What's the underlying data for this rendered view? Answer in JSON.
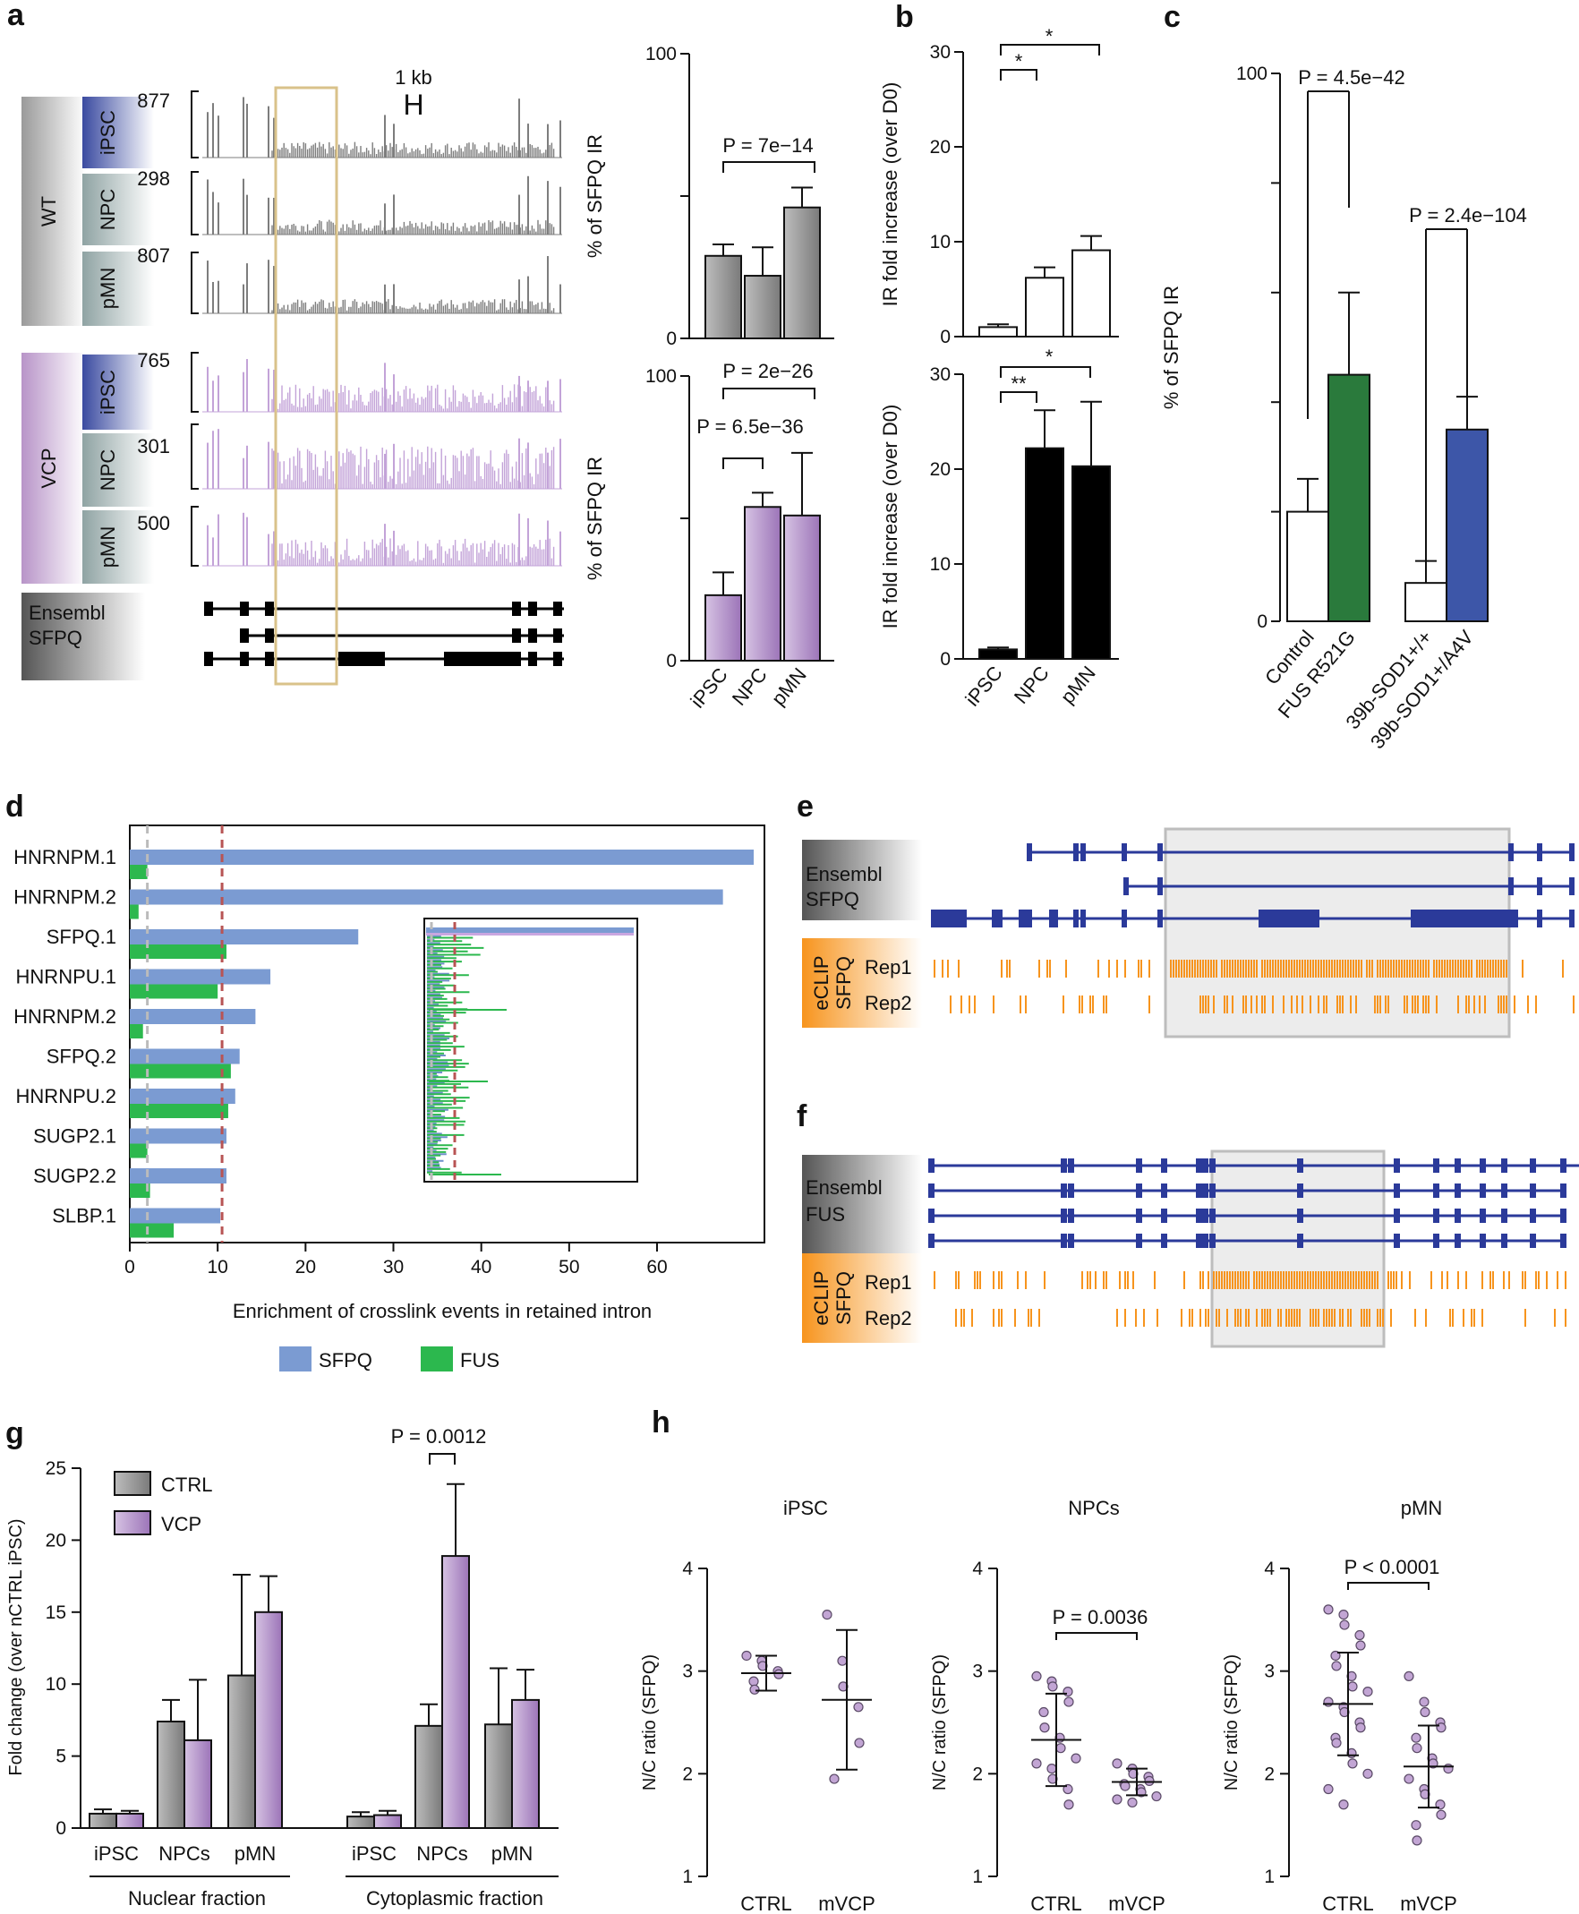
{
  "panel_labels": [
    "a",
    "b",
    "c",
    "d",
    "e",
    "f",
    "g",
    "h"
  ],
  "colors": {
    "gray": "#8c8c8c",
    "purple": "#b89ccc",
    "green": "#2a7a3c",
    "blue": "#3d56a8",
    "sfpq_bar": "#7b9bd2",
    "fus_bar": "#2cb84e",
    "black": "#000000",
    "track_navy": "#2b3a9a",
    "eclip_orange": "#f7941d",
    "highlight_box": "#d9c28a"
  },
  "panel_a": {
    "scale_label": "1 kb",
    "scale_glyph": "H",
    "groups": [
      {
        "name": "WT",
        "tracks": [
          {
            "cell": "iPSC",
            "max": "877"
          },
          {
            "cell": "NPC",
            "max": "298"
          },
          {
            "cell": "pMN",
            "max": "807"
          }
        ]
      },
      {
        "name": "VCP",
        "tracks": [
          {
            "cell": "iPSC",
            "max": "765"
          },
          {
            "cell": "NPC",
            "max": "301"
          },
          {
            "cell": "pMN",
            "max": "500"
          }
        ]
      }
    ],
    "ensembl_line1": "Ensembl",
    "ensembl_line2": "SFPQ"
  },
  "chart_data": [
    {
      "id": "a-top",
      "type": "bar",
      "categories": [
        "iPSC",
        "NPC",
        "pMN"
      ],
      "values": [
        29,
        22,
        46
      ],
      "errors": [
        4,
        10,
        7
      ],
      "ylabel": "% of SFPQ IR",
      "ylim": [
        0,
        100
      ],
      "yticks": [
        "0",
        "100"
      ],
      "annotations": [
        {
          "text": "P = 7e−14",
          "between": [
            "iPSC",
            "pMN"
          ]
        }
      ]
    },
    {
      "id": "a-bottom",
      "type": "bar",
      "categories": [
        "iPSC",
        "NPC",
        "pMN"
      ],
      "values": [
        23,
        54,
        51
      ],
      "errors": [
        8,
        5,
        22
      ],
      "ylabel": "% of SFPQ IR",
      "ylim": [
        0,
        100
      ],
      "yticks": [
        "0",
        "100"
      ],
      "annotations": [
        {
          "text": "P = 2e−26",
          "between": [
            "iPSC",
            "pMN"
          ]
        },
        {
          "text": "P = 6.5e−36",
          "between": [
            "iPSC",
            "NPC"
          ]
        }
      ]
    },
    {
      "id": "b-top",
      "type": "bar",
      "categories": [
        "iPSC",
        "NPC",
        "pMN"
      ],
      "values": [
        1,
        6.2,
        9.1
      ],
      "errors": [
        0.3,
        1.1,
        1.5
      ],
      "ylabel": "IR fold increase (over D0)",
      "ylim": [
        0,
        30
      ],
      "yticks": [
        "0",
        "10",
        "20",
        "30"
      ],
      "annotations": [
        {
          "text": "*",
          "between": [
            "iPSC",
            "NPC"
          ]
        },
        {
          "text": "*",
          "between": [
            "iPSC",
            "pMN"
          ]
        }
      ]
    },
    {
      "id": "b-bottom",
      "type": "bar",
      "categories": [
        "iPSC",
        "NPC",
        "pMN"
      ],
      "values": [
        1,
        22.2,
        20.3
      ],
      "errors": [
        0.2,
        4,
        6.8
      ],
      "ylabel": "IR fold increase (over D0)",
      "ylim": [
        0,
        30
      ],
      "yticks": [
        "0",
        "10",
        "20",
        "30"
      ],
      "annotations": [
        {
          "text": "**",
          "between": [
            "iPSC",
            "NPC"
          ]
        },
        {
          "text": "*",
          "between": [
            "iPSC",
            "pMN"
          ]
        }
      ]
    },
    {
      "id": "c",
      "type": "bar",
      "categories": [
        "Control",
        "FUS R521G",
        "39b-SOD1+/+",
        "39b-SOD1+/A4V"
      ],
      "values": [
        20,
        45,
        7,
        35
      ],
      "errors": [
        6,
        15,
        4,
        6
      ],
      "ylabel": "% of SFPQ IR",
      "ylim": [
        0,
        100
      ],
      "yticks": [
        "0",
        "100"
      ],
      "annotations": [
        {
          "text": "P = 4.5e−42",
          "between": [
            "Control",
            "FUS R521G"
          ]
        },
        {
          "text": "P = 2.4e−104",
          "between": [
            "39b-SOD1+/+",
            "39b-SOD1+/A4V"
          ]
        }
      ]
    },
    {
      "id": "d",
      "type": "bar",
      "orientation": "horizontal",
      "categories": [
        "HNRNPM.1",
        "HNRNPM.2",
        "SFPQ.1",
        "HNRNPU.1",
        "HNRNPM.2",
        "SFPQ.2",
        "HNRNPU.2",
        "SUGP2.1",
        "SUGP2.2",
        "SLBP.1"
      ],
      "series": [
        {
          "name": "SFPQ",
          "values": [
            71,
            67.5,
            26,
            16,
            14.3,
            12.5,
            12,
            11,
            11,
            10.3
          ]
        },
        {
          "name": "FUS",
          "values": [
            2,
            1,
            11,
            10,
            1.5,
            11.5,
            11.2,
            2,
            2.3,
            5
          ]
        }
      ],
      "xlabel": "Enrichment of crosslink events in retained intron",
      "xlim": [
        0,
        72
      ],
      "xticks": [
        "0",
        "10",
        "20",
        "30",
        "40",
        "50",
        "60"
      ],
      "reference_lines": [
        2,
        10.5
      ]
    },
    {
      "id": "g",
      "type": "bar",
      "categories": [
        "iPSC",
        "NPCs",
        "pMN",
        "iPSC",
        "NPCs",
        "pMN"
      ],
      "groups": [
        "Nuclear fraction",
        "Cytoplasmic fraction"
      ],
      "series": [
        {
          "name": "CTRL",
          "values": [
            1.0,
            7.4,
            10.6,
            0.8,
            7.1,
            7.2
          ],
          "errors": [
            0.3,
            1.5,
            7.0,
            0.3,
            1.5,
            3.9
          ]
        },
        {
          "name": "VCP",
          "values": [
            1.0,
            6.1,
            15.0,
            0.9,
            18.9,
            8.9
          ],
          "errors": [
            0.2,
            4.2,
            2.5,
            0.3,
            5.0,
            2.1
          ]
        }
      ],
      "ylabel": "Fold change (over nCTRL iPSC)",
      "ylim": [
        0,
        25
      ],
      "yticks": [
        "0",
        "5",
        "10",
        "15",
        "20",
        "25"
      ],
      "annotations": [
        {
          "text": "P = 0.0012",
          "group": "NPCs cytoplasmic"
        }
      ]
    },
    {
      "id": "h-iPSC",
      "type": "scatter",
      "title": "iPSC",
      "categories": [
        "CTRL",
        "mVCP"
      ],
      "points": [
        [
          3.15,
          3.1,
          3.05,
          3.0,
          2.97,
          2.9,
          2.82
        ],
        [
          3.55,
          3.1,
          2.85,
          2.65,
          2.3,
          1.95
        ]
      ],
      "mean": [
        2.98,
        2.72
      ],
      "sd": [
        0.17,
        0.68
      ],
      "ylabel": "N/C ratio (SFPQ)",
      "ylim": [
        1,
        4
      ],
      "yticks": [
        "1",
        "2",
        "3",
        "4"
      ]
    },
    {
      "id": "h-NPCs",
      "type": "scatter",
      "title": "NPCs",
      "categories": [
        "CTRL",
        "mVCP"
      ],
      "points": [
        [
          2.95,
          2.9,
          2.85,
          2.8,
          2.7,
          2.6,
          2.45,
          2.35,
          2.25,
          2.15,
          2.1,
          2.05,
          1.95,
          1.85,
          1.7
        ],
        [
          2.1,
          2.05,
          2.0,
          1.97,
          1.93,
          1.9,
          1.88,
          1.85,
          1.82,
          1.78,
          1.75,
          1.72
        ]
      ],
      "mean": [
        2.33,
        1.92
      ],
      "sd": [
        0.45,
        0.13
      ],
      "ylabel": "N/C ratio (SFPQ)",
      "ylim": [
        1,
        4
      ],
      "yticks": [
        "1",
        "2",
        "3",
        "4"
      ],
      "annotations": [
        {
          "text": "P = 0.0036",
          "between": [
            "CTRL",
            "mVCP"
          ]
        }
      ]
    },
    {
      "id": "h-pMN",
      "type": "scatter",
      "title": "pMN",
      "categories": [
        "CTRL",
        "mVCP"
      ],
      "points": [
        [
          3.6,
          3.55,
          3.45,
          3.35,
          3.25,
          3.15,
          3.05,
          2.95,
          2.85,
          2.8,
          2.7,
          2.65,
          2.6,
          2.5,
          2.45,
          2.35,
          2.3,
          2.2,
          2.1,
          2.0,
          1.85,
          1.7
        ],
        [
          2.95,
          2.7,
          2.6,
          2.5,
          2.45,
          2.35,
          2.25,
          2.15,
          2.1,
          2.05,
          1.95,
          1.85,
          1.8,
          1.7,
          1.6,
          1.5,
          1.35
        ]
      ],
      "mean": [
        2.68,
        2.07
      ],
      "sd": [
        0.5,
        0.4
      ],
      "ylabel": "N/C ratio (SFPQ)",
      "ylim": [
        1,
        4
      ],
      "yticks": [
        "1",
        "2",
        "3",
        "4"
      ],
      "annotations": [
        {
          "text": "P < 0.0001",
          "between": [
            "CTRL",
            "mVCP"
          ]
        }
      ]
    }
  ],
  "panel_e": {
    "ensembl_line1": "Ensembl",
    "ensembl_line2": "SFPQ",
    "eclip": "eCLIP",
    "eclip_sub": "SFPQ",
    "reps": [
      "Rep1",
      "Rep2"
    ]
  },
  "panel_f": {
    "ensembl_line1": "Ensembl",
    "ensembl_line2": "FUS",
    "eclip": "eCLIP",
    "eclip_sub": "SFPQ",
    "reps": [
      "Rep1",
      "Rep2"
    ]
  }
}
